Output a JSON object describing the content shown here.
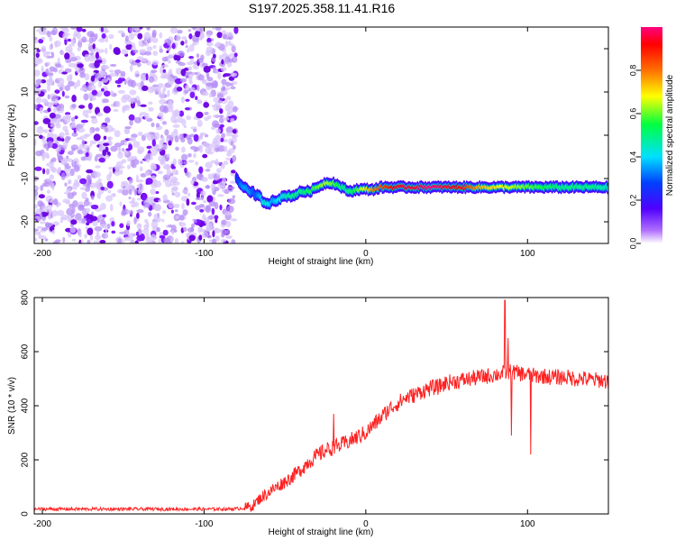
{
  "title": "S197.2025.358.11.41.R16",
  "chart_data": [
    {
      "type": "heatmap",
      "name": "spectrogram",
      "xlabel": "Height of straight line (km)",
      "ylabel": "Frequency (Hz)",
      "xlim": [
        -205,
        150
      ],
      "ylim": [
        -25,
        25
      ],
      "xticks": [
        -200,
        -100,
        0,
        100
      ],
      "yticks": [
        -20,
        -10,
        0,
        10,
        20
      ],
      "noise_region": {
        "x_range": [
          -205,
          -80
        ],
        "y_range": [
          -25,
          25
        ]
      },
      "signal_track": {
        "x": [
          -80,
          -78,
          -76,
          -74,
          -72,
          -70,
          -68,
          -66,
          -64,
          -62,
          -60,
          -58,
          -55,
          -50,
          -45,
          -40,
          -35,
          -30,
          -25,
          -20,
          -15,
          -10,
          -5,
          0,
          5,
          10,
          20,
          30,
          40,
          50,
          60,
          70,
          80,
          90,
          100,
          110,
          120,
          130,
          140,
          150
        ],
        "y": [
          -10,
          -11,
          -12,
          -12,
          -13,
          -13,
          -14,
          -14,
          -15,
          -16,
          -16,
          -15,
          -15,
          -14,
          -14,
          -13,
          -13,
          -12,
          -11,
          -11,
          -12,
          -13,
          -12.5,
          -12.5,
          -12.5,
          -12,
          -12,
          -12,
          -12,
          -12,
          -12,
          -12,
          -12,
          -12,
          -12,
          -12,
          -12,
          -12,
          -12,
          -12
        ],
        "amplitude": [
          0.25,
          0.3,
          0.35,
          0.35,
          0.35,
          0.3,
          0.3,
          0.35,
          0.4,
          0.45,
          0.4,
          0.35,
          0.4,
          0.45,
          0.5,
          0.5,
          0.55,
          0.6,
          0.65,
          0.6,
          0.5,
          0.5,
          0.6,
          0.7,
          0.8,
          0.85,
          0.95,
          0.95,
          1.0,
          0.95,
          0.9,
          0.75,
          0.7,
          0.65,
          0.6,
          0.55,
          0.5,
          0.5,
          0.5,
          0.45
        ]
      },
      "colorbar": {
        "label": "Normalized spectral amplitude",
        "range": [
          0,
          1
        ],
        "ticks": [
          0.0,
          0.2,
          0.4,
          0.6,
          0.8
        ],
        "tick_labels": [
          "0.0",
          "0.2",
          "0.4",
          "0.6",
          "0.8"
        ],
        "colors": [
          "#ffffff",
          "#7a00ff",
          "#0000ff",
          "#00ffff",
          "#00ff00",
          "#ffff00",
          "#ff8800",
          "#ff0000",
          "#ff0088"
        ]
      }
    },
    {
      "type": "line",
      "name": "snr",
      "xlabel": "Height of straight line (km)",
      "ylabel": "SNR (10 * v/v)",
      "xlim": [
        -205,
        150
      ],
      "ylim": [
        0,
        800
      ],
      "xticks": [
        -200,
        -100,
        0,
        100
      ],
      "yticks": [
        0,
        200,
        400,
        600,
        800
      ],
      "color": "#ff2020",
      "x": [
        -205,
        -180,
        -150,
        -120,
        -90,
        -80,
        -75,
        -70,
        -65,
        -60,
        -55,
        -50,
        -45,
        -40,
        -35,
        -30,
        -25,
        -20,
        -15,
        -10,
        -5,
        0,
        5,
        10,
        15,
        20,
        25,
        30,
        35,
        40,
        45,
        50,
        55,
        60,
        65,
        70,
        75,
        80,
        85,
        90,
        95,
        100,
        105,
        110,
        115,
        120,
        125,
        130,
        135,
        140,
        145,
        150
      ],
      "y": [
        18,
        18,
        18,
        18,
        18,
        19,
        22,
        30,
        60,
        80,
        100,
        120,
        140,
        165,
        195,
        215,
        235,
        245,
        255,
        270,
        285,
        300,
        330,
        360,
        390,
        410,
        430,
        440,
        455,
        465,
        470,
        485,
        490,
        495,
        500,
        505,
        510,
        515,
        520,
        525,
        520,
        515,
        510,
        510,
        505,
        505,
        505,
        500,
        500,
        495,
        495,
        490
      ],
      "noise_amplitude": 30,
      "spikes": [
        {
          "x": 86,
          "y": 790
        },
        {
          "x": 88,
          "y": 650
        },
        {
          "x": 90,
          "y": 290
        },
        {
          "x": 102,
          "y": 220
        },
        {
          "x": -20,
          "y": 370
        }
      ]
    }
  ]
}
